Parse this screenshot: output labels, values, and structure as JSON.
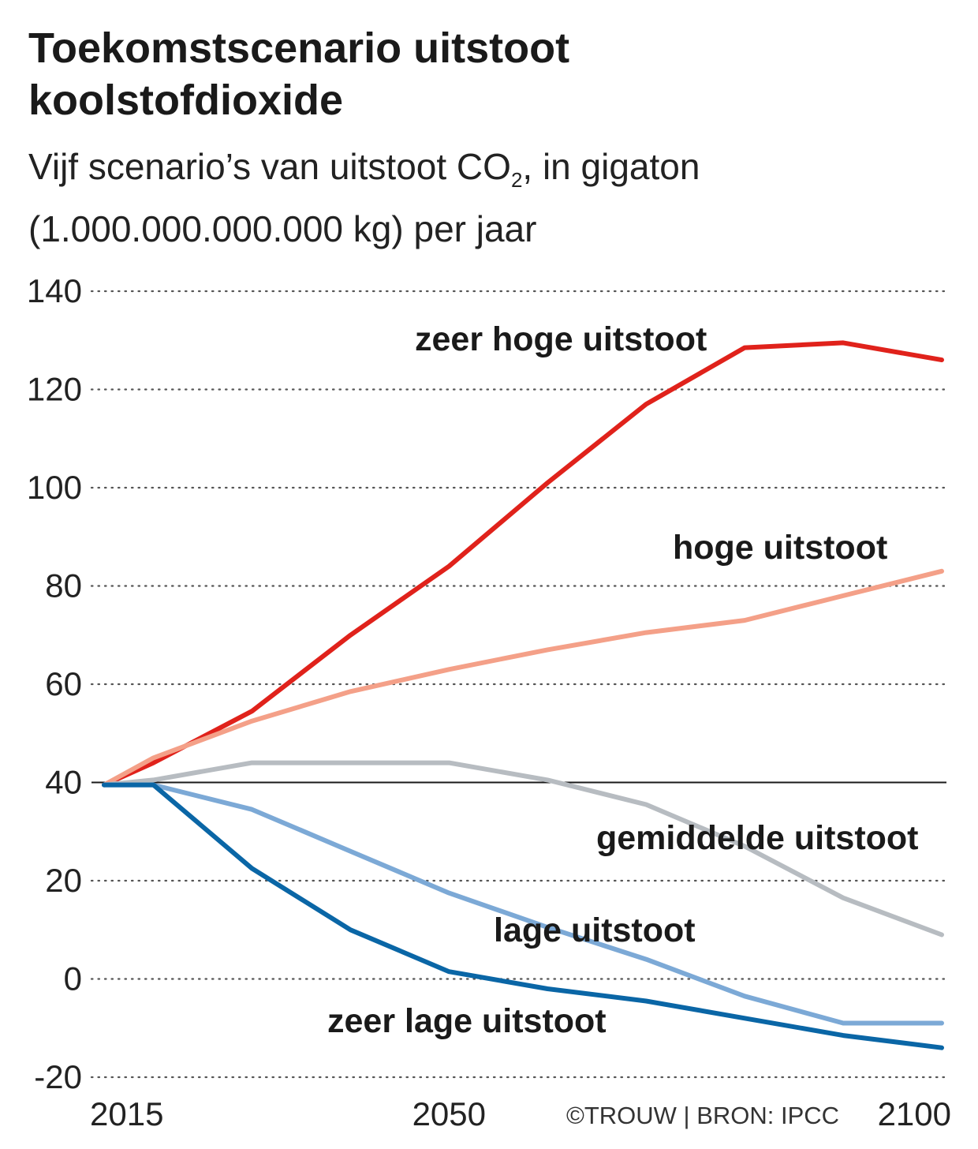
{
  "header": {
    "title_line1": "Toekomstscenario uitstoot",
    "title_line2": "koolstofdioxide",
    "subtitle_part1": "Vijf scenario’s van uitstoot CO",
    "subtitle_sub": "2",
    "subtitle_part2": ", in gigaton",
    "subtitle_line2": "(1.000.000.000.000 kg) per jaar"
  },
  "source": "©TROUW | BRON: IPCC",
  "chart_data": {
    "type": "line",
    "title": "Toekomstscenario uitstoot koolstofdioxide",
    "subtitle": "Vijf scenario’s van uitstoot CO2, in gigaton (1.000.000.000.000 kg) per jaar",
    "xlabel": "",
    "ylabel": "",
    "xlim": [
      2015,
      2100
    ],
    "ylim": [
      -20,
      140
    ],
    "x_ticks": [
      2015,
      2050,
      2100
    ],
    "y_ticks": [
      -20,
      0,
      20,
      40,
      60,
      80,
      100,
      120,
      140
    ],
    "grid": "horizontal dotted",
    "reference_line": 40,
    "x": [
      2015,
      2020,
      2030,
      2040,
      2050,
      2060,
      2070,
      2080,
      2090,
      2100
    ],
    "series": [
      {
        "name": "zeer hoge uitstoot",
        "color": "#e0221b",
        "values": [
          39.5,
          44,
          54.5,
          70,
          84,
          101,
          117,
          128.5,
          129.5,
          126
        ]
      },
      {
        "name": "hoge uitstoot",
        "color": "#f4a088",
        "values": [
          39.5,
          45,
          52.5,
          58.5,
          63,
          67,
          70.5,
          73,
          78,
          83
        ]
      },
      {
        "name": "gemiddelde uitstoot",
        "color": "#b7bcc1",
        "values": [
          39.5,
          40.5,
          44,
          44,
          44,
          40.5,
          35.5,
          27,
          16.5,
          9
        ]
      },
      {
        "name": "lage uitstoot",
        "color": "#7ca9d6",
        "values": [
          39.5,
          39.5,
          34.5,
          26,
          17.5,
          10.5,
          4,
          -3.5,
          -9,
          -9
        ]
      },
      {
        "name": "zeer lage uitstoot",
        "color": "#0a66a6",
        "values": [
          39.5,
          39.5,
          22.5,
          10,
          1.5,
          -2,
          -4.5,
          -8,
          -11.5,
          -14
        ]
      }
    ]
  }
}
